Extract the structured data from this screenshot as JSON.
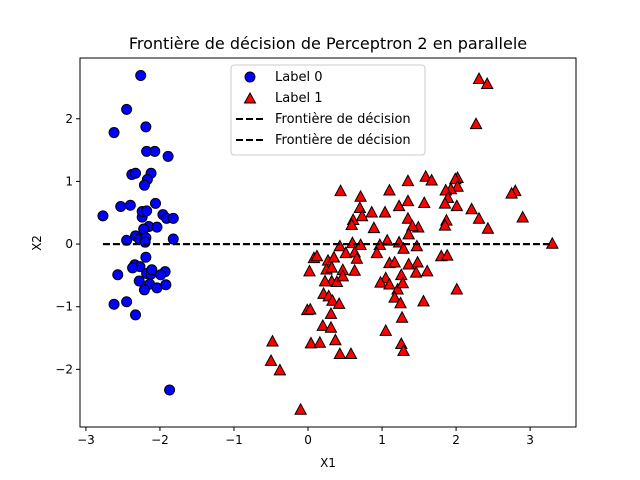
{
  "chart_data": {
    "type": "scatter",
    "title": "Frontière de décision de Perceptron 2 en parallele",
    "xlabel": "X1",
    "ylabel": "X2",
    "xlim": [
      -3.08,
      3.62
    ],
    "ylim": [
      -2.92,
      2.97
    ],
    "xticks": [
      {
        "value": -3,
        "label": "−3"
      },
      {
        "value": -2,
        "label": "−2"
      },
      {
        "value": -1,
        "label": "−1"
      },
      {
        "value": 0,
        "label": "0"
      },
      {
        "value": 1,
        "label": "1"
      },
      {
        "value": 2,
        "label": "2"
      },
      {
        "value": 3,
        "label": "3"
      }
    ],
    "yticks": [
      {
        "value": -2,
        "label": "−2"
      },
      {
        "value": -1,
        "label": "−1"
      },
      {
        "value": 0,
        "label": "0"
      },
      {
        "value": 1,
        "label": "1"
      },
      {
        "value": 2,
        "label": "2"
      }
    ],
    "grid": false,
    "legend_position": "top-center",
    "series": [
      {
        "name": "Label 0",
        "marker": "circle",
        "color": "#0000ff",
        "edge": "#000000",
        "points": [
          [
            -2.26,
            2.69
          ],
          [
            -2.45,
            2.15
          ],
          [
            -2.62,
            1.78
          ],
          [
            -2.19,
            1.87
          ],
          [
            -2.18,
            1.48
          ],
          [
            -2.07,
            1.48
          ],
          [
            -1.89,
            1.4
          ],
          [
            -2.38,
            1.11
          ],
          [
            -2.33,
            1.13
          ],
          [
            -2.12,
            1.13
          ],
          [
            -2.17,
            1.03
          ],
          [
            -2.21,
            0.94
          ],
          [
            -2.53,
            0.6
          ],
          [
            -2.4,
            0.62
          ],
          [
            -2.24,
            0.43
          ],
          [
            -2.24,
            0.52
          ],
          [
            -2.18,
            0.53
          ],
          [
            -2.06,
            0.65
          ],
          [
            -1.96,
            0.47
          ],
          [
            -1.91,
            0.41
          ],
          [
            -1.82,
            0.41
          ],
          [
            -2.77,
            0.45
          ],
          [
            -2.15,
            0.28
          ],
          [
            -2.04,
            0.27
          ],
          [
            -2.22,
            0.24
          ],
          [
            -2.33,
            0.13
          ],
          [
            -2.45,
            0.06
          ],
          [
            -2.28,
            0.08
          ],
          [
            -2.19,
            0.1
          ],
          [
            -2.2,
            0.03
          ],
          [
            -1.82,
            0.08
          ],
          [
            -2.19,
            -0.21
          ],
          [
            -2.34,
            -0.33
          ],
          [
            -2.27,
            -0.36
          ],
          [
            -2.37,
            -0.38
          ],
          [
            -2.57,
            -0.49
          ],
          [
            -2.18,
            -0.47
          ],
          [
            -2.12,
            -0.48
          ],
          [
            -2.11,
            -0.41
          ],
          [
            -1.93,
            -0.44
          ],
          [
            -1.99,
            -0.49
          ],
          [
            -2.28,
            -0.59
          ],
          [
            -2.14,
            -0.64
          ],
          [
            -2.21,
            -0.73
          ],
          [
            -2.04,
            -0.7
          ],
          [
            -1.92,
            -0.65
          ],
          [
            -2.45,
            -0.92
          ],
          [
            -2.62,
            -0.96
          ],
          [
            -2.33,
            -1.13
          ],
          [
            -1.87,
            -2.33
          ]
        ]
      },
      {
        "name": "Label 1",
        "marker": "triangle",
        "color": "#ff0000",
        "edge": "#000000",
        "points": [
          [
            2.31,
            2.63
          ],
          [
            2.42,
            2.55
          ],
          [
            2.27,
            1.91
          ],
          [
            2.02,
            1.05
          ],
          [
            1.99,
            1.03
          ],
          [
            2.02,
            0.91
          ],
          [
            1.93,
            0.87
          ],
          [
            1.59,
            1.07
          ],
          [
            1.67,
            1.01
          ],
          [
            1.35,
            1.0
          ],
          [
            1.1,
            0.85
          ],
          [
            0.44,
            0.84
          ],
          [
            0.71,
            0.75
          ],
          [
            2.8,
            0.84
          ],
          [
            2.75,
            0.8
          ],
          [
            1.86,
            0.85
          ],
          [
            1.89,
            0.73
          ],
          [
            2.01,
            0.6
          ],
          [
            2.21,
            0.55
          ],
          [
            1.85,
            0.64
          ],
          [
            1.57,
            0.65
          ],
          [
            1.35,
            0.68
          ],
          [
            1.23,
            0.6
          ],
          [
            0.86,
            0.5
          ],
          [
            0.7,
            0.57
          ],
          [
            1.04,
            0.5
          ],
          [
            0.73,
            0.44
          ],
          [
            1.35,
            0.4
          ],
          [
            1.49,
            0.26
          ],
          [
            1.41,
            0.28
          ],
          [
            2.31,
            0.4
          ],
          [
            2.43,
            0.24
          ],
          [
            2.9,
            0.42
          ],
          [
            1.87,
            0.37
          ],
          [
            1.85,
            0.29
          ],
          [
            0.61,
            0.38
          ],
          [
            0.59,
            0.3
          ],
          [
            0.89,
            0.25
          ],
          [
            1.36,
            0.15
          ],
          [
            1.07,
            0.05
          ],
          [
            1.23,
            0.02
          ],
          [
            0.97,
            -0.02
          ],
          [
            0.6,
            0.01
          ],
          [
            0.43,
            -0.04
          ],
          [
            0.71,
            -0.02
          ],
          [
            1.47,
            -0.04
          ],
          [
            1.29,
            -0.08
          ],
          [
            0.02,
            -0.44
          ],
          [
            0.08,
            -0.23
          ],
          [
            0.12,
            -0.2
          ],
          [
            0.27,
            -0.27
          ],
          [
            0.35,
            -0.22
          ],
          [
            0.51,
            -0.15
          ],
          [
            0.63,
            -0.14
          ],
          [
            0.66,
            -0.24
          ],
          [
            0.25,
            -0.41
          ],
          [
            0.32,
            -0.38
          ],
          [
            0.47,
            -0.42
          ],
          [
            0.63,
            -0.43
          ],
          [
            0.93,
            -0.15
          ],
          [
            1.1,
            -0.31
          ],
          [
            1.17,
            -0.3
          ],
          [
            1.36,
            -0.33
          ],
          [
            1.48,
            -0.3
          ],
          [
            1.8,
            -0.2
          ],
          [
            1.88,
            -0.19
          ],
          [
            1.61,
            -0.44
          ],
          [
            1.46,
            -0.46
          ],
          [
            1.26,
            -0.5
          ],
          [
            1.05,
            -0.55
          ],
          [
            0.98,
            -0.62
          ],
          [
            1.1,
            -0.65
          ],
          [
            1.21,
            -0.73
          ],
          [
            1.28,
            -0.63
          ],
          [
            1.17,
            -0.86
          ],
          [
            0.32,
            -0.6
          ],
          [
            0.23,
            -0.6
          ],
          [
            0.39,
            -0.61
          ],
          [
            0.47,
            -0.52
          ],
          [
            0.21,
            -0.8
          ],
          [
            0.28,
            -0.84
          ],
          [
            0.33,
            -0.91
          ],
          [
            0.42,
            -0.96
          ],
          [
            1.25,
            -0.95
          ],
          [
            1.56,
            -0.92
          ],
          [
            2.01,
            -0.73
          ],
          [
            -0.01,
            -1.06
          ],
          [
            0.03,
            -1.05
          ],
          [
            0.31,
            -1.12
          ],
          [
            0.2,
            -1.31
          ],
          [
            0.31,
            -1.34
          ],
          [
            1.27,
            -1.18
          ],
          [
            1.05,
            -1.39
          ],
          [
            0.37,
            -1.54
          ],
          [
            0.04,
            -1.59
          ],
          [
            0.16,
            -1.58
          ],
          [
            1.26,
            -1.6
          ],
          [
            1.29,
            -1.71
          ],
          [
            0.43,
            -1.76
          ],
          [
            0.58,
            -1.76
          ],
          [
            -0.48,
            -1.56
          ],
          [
            -0.5,
            -1.87
          ],
          [
            -0.38,
            -2.02
          ],
          [
            -0.1,
            -2.65
          ],
          [
            3.3,
            0.0
          ]
        ]
      },
      {
        "name": "Frontière de décision",
        "type": "line",
        "color": "#000000",
        "style": "dashed",
        "points": [
          [
            -2.77,
            0.0
          ],
          [
            3.3,
            0.0
          ]
        ]
      },
      {
        "name": "Frontière de décision",
        "type": "line",
        "color": "#000000",
        "style": "dashed",
        "points": [
          [
            -2.77,
            0.0
          ],
          [
            3.3,
            0.0
          ]
        ]
      }
    ]
  }
}
